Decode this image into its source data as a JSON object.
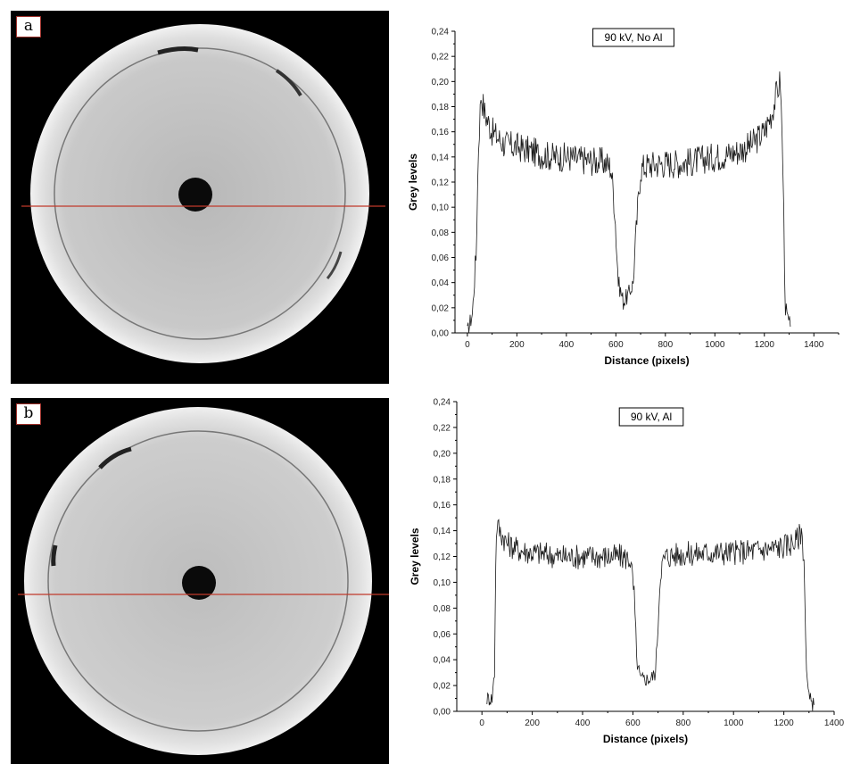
{
  "panels": [
    {
      "letter": "a"
    },
    {
      "letter": "b"
    }
  ],
  "colors": {
    "trace": "#1a1a1a",
    "profile_line": "#c0392b",
    "panel_label_border": "#a0302a"
  },
  "chart_data": [
    {
      "type": "line",
      "title": "90 kV, No Al",
      "xlabel": "Distance (pixels)",
      "ylabel": "Grey levels",
      "xlim": [
        -50,
        1500
      ],
      "ylim": [
        0,
        0.24
      ],
      "x_ticks": [
        0,
        200,
        400,
        600,
        800,
        1000,
        1200,
        1400
      ],
      "y_ticks": [
        "0,00",
        "0,02",
        "0,04",
        "0,06",
        "0,08",
        "0,10",
        "0,12",
        "0,14",
        "0,16",
        "0,18",
        "0,20",
        "0,22",
        "0,24"
      ],
      "grid": false,
      "series": [
        {
          "x": [
            0,
            20,
            35,
            45,
            55,
            70,
            100,
            150,
            200,
            250,
            300,
            350,
            400,
            450,
            500,
            550,
            580,
            595,
            610,
            630,
            650,
            670,
            685,
            700,
            720,
            750,
            800,
            850,
            900,
            950,
            1000,
            1050,
            1100,
            1150,
            1200,
            1230,
            1255,
            1265,
            1275,
            1285,
            1295,
            1305
          ],
          "y": [
            0.0,
            0.015,
            0.06,
            0.15,
            0.19,
            0.175,
            0.16,
            0.15,
            0.148,
            0.145,
            0.142,
            0.14,
            0.14,
            0.138,
            0.137,
            0.136,
            0.132,
            0.1,
            0.04,
            0.025,
            0.03,
            0.04,
            0.09,
            0.13,
            0.133,
            0.134,
            0.135,
            0.135,
            0.136,
            0.138,
            0.14,
            0.142,
            0.145,
            0.15,
            0.16,
            0.175,
            0.195,
            0.2,
            0.13,
            0.02,
            0.01,
            0.005
          ],
          "noise": 0.012
        }
      ]
    },
    {
      "type": "line",
      "title": "90 kV, Al",
      "xlabel": "Distance (pixels)",
      "ylabel": "Grey levels",
      "xlim": [
        -100,
        1400
      ],
      "ylim": [
        0,
        0.24
      ],
      "x_ticks": [
        0,
        200,
        400,
        600,
        800,
        1000,
        1200,
        1400
      ],
      "y_ticks": [
        "0,00",
        "0,02",
        "0,04",
        "0,06",
        "0,08",
        "0,10",
        "0,12",
        "0,14",
        "0,16",
        "0,18",
        "0,20",
        "0,22",
        "0,24"
      ],
      "grid": false,
      "series": [
        {
          "x": [
            20,
            40,
            50,
            55,
            60,
            70,
            100,
            150,
            200,
            250,
            300,
            350,
            400,
            450,
            500,
            550,
            590,
            605,
            615,
            630,
            650,
            670,
            690,
            700,
            710,
            730,
            760,
            800,
            850,
            900,
            950,
            1000,
            1050,
            1100,
            1150,
            1200,
            1250,
            1270,
            1280,
            1290,
            1300,
            1320
          ],
          "y": [
            0.01,
            0.01,
            0.03,
            0.12,
            0.145,
            0.14,
            0.13,
            0.125,
            0.123,
            0.122,
            0.12,
            0.12,
            0.12,
            0.12,
            0.12,
            0.12,
            0.118,
            0.09,
            0.04,
            0.025,
            0.025,
            0.025,
            0.03,
            0.07,
            0.11,
            0.12,
            0.121,
            0.122,
            0.122,
            0.123,
            0.123,
            0.123,
            0.124,
            0.125,
            0.126,
            0.128,
            0.132,
            0.14,
            0.12,
            0.03,
            0.01,
            0.005
          ],
          "noise": 0.01
        }
      ]
    }
  ]
}
